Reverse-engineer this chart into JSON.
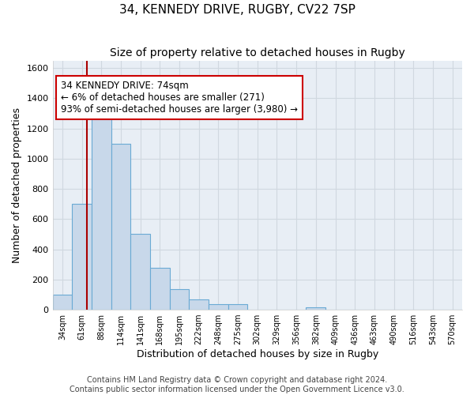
{
  "title_line1": "34, KENNEDY DRIVE, RUGBY, CV22 7SP",
  "title_line2": "Size of property relative to detached houses in Rugby",
  "xlabel": "Distribution of detached houses by size in Rugby",
  "ylabel": "Number of detached properties",
  "bin_labels": [
    "34sqm",
    "61sqm",
    "88sqm",
    "114sqm",
    "141sqm",
    "168sqm",
    "195sqm",
    "222sqm",
    "248sqm",
    "275sqm",
    "302sqm",
    "329sqm",
    "356sqm",
    "382sqm",
    "409sqm",
    "436sqm",
    "463sqm",
    "490sqm",
    "516sqm",
    "543sqm",
    "570sqm"
  ],
  "bar_heights": [
    100,
    700,
    1330,
    1100,
    500,
    275,
    135,
    70,
    35,
    35,
    0,
    0,
    0,
    15,
    0,
    0,
    0,
    0,
    0,
    0,
    0
  ],
  "bar_color": "#c8d8ea",
  "bar_edge_color": "#6aaad4",
  "background_color": "#e8eef5",
  "grid_color": "#d0d8e0",
  "vline_color": "#aa0000",
  "annotation_text": "34 KENNEDY DRIVE: 74sqm\n← 6% of detached houses are smaller (271)\n93% of semi-detached houses are larger (3,980) →",
  "annotation_box_color": "#ffffff",
  "annotation_box_edge_color": "#cc0000",
  "ylim": [
    0,
    1650
  ],
  "yticks": [
    0,
    200,
    400,
    600,
    800,
    1000,
    1200,
    1400,
    1600
  ],
  "footer_text": "Contains HM Land Registry data © Crown copyright and database right 2024.\nContains public sector information licensed under the Open Government Licence v3.0.",
  "title_fontsize": 11,
  "subtitle_fontsize": 10,
  "annotation_fontsize": 8.5,
  "footer_fontsize": 7
}
